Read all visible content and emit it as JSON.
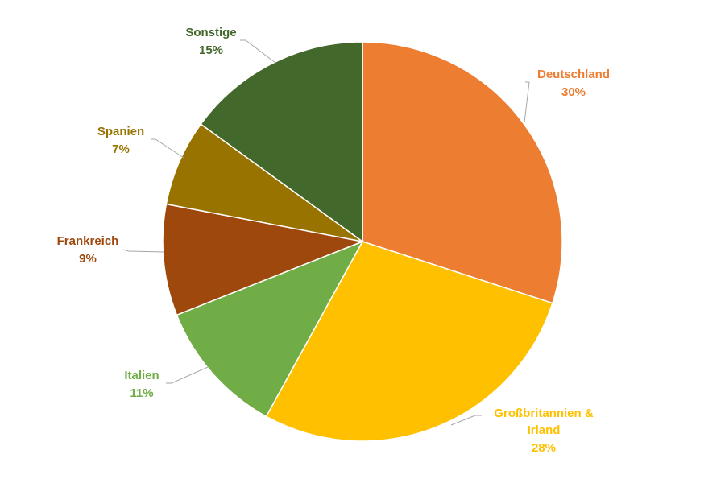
{
  "chart_data": {
    "type": "pie",
    "title": "",
    "start_angle_deg": 0,
    "direction": "clockwise",
    "slices": [
      {
        "label": "Deutschland",
        "value_text": "30%",
        "value": 30,
        "color": "#ED7D31"
      },
      {
        "label": "Großbritannien & Irland",
        "value_text": "28%",
        "value": 28,
        "color": "#FFC000"
      },
      {
        "label": "Italien",
        "value_text": "11%",
        "value": 11,
        "color": "#70AD47"
      },
      {
        "label": "Frankreich",
        "value_text": "9%",
        "value": 9,
        "color": "#9E480E"
      },
      {
        "label": "Spanien",
        "value_text": "7%",
        "value": 7,
        "color": "#997300"
      },
      {
        "label": "Sonstige",
        "value_text": "15%",
        "value": 15,
        "color": "#43682B"
      }
    ],
    "leader_line_color": "#A6A6A6",
    "legend": "none",
    "data_labels": "outside-with-leader-lines"
  }
}
